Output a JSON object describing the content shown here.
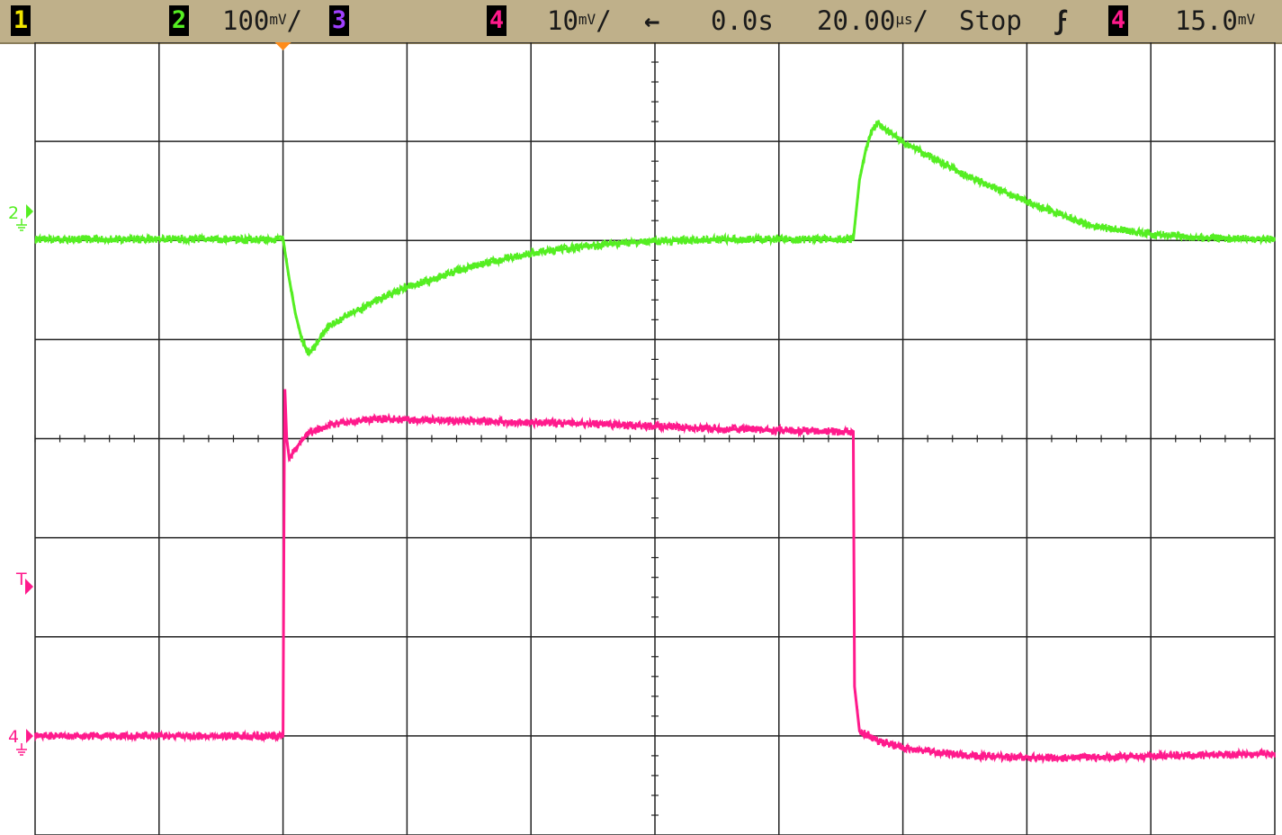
{
  "status_bar": {
    "ch1_label": "1",
    "ch2_label": "2",
    "ch2_scale": "100",
    "ch2_scale_units": "mV",
    "ch2_scale_suffix": "/",
    "ch3_label": "3",
    "ch4_label": "4",
    "ch4_scale": "10",
    "ch4_scale_units": "mV",
    "ch4_scale_suffix": "/",
    "arrow": "←",
    "delay": "0.0s",
    "timebase": "20.00",
    "timebase_units": "µs",
    "timebase_suffix": "/",
    "run_state": "Stop",
    "trigger_slope": "ϝ",
    "trigger_source": "4",
    "trigger_level": "15.0",
    "trigger_level_units": "mV"
  },
  "markers": {
    "ch2_ground_label": "2",
    "ch4_ground_label": "4",
    "trigger_level_label": "T"
  },
  "colors": {
    "ch1": "#f2e600",
    "ch2": "#55ee22",
    "ch3": "#a040ff",
    "ch4": "#ff1a8c",
    "trigger_marker": "#ff8c1a",
    "grid": "#222222",
    "status_bg": "#bfb08a"
  },
  "chart_data": {
    "type": "line",
    "x_divisions": 10,
    "y_divisions": 8,
    "x_unit": "µs",
    "x_per_div": 20,
    "x_range_us": [
      -40,
      160
    ],
    "trigger_time_us": 0,
    "grid": true,
    "series": [
      {
        "name": "2",
        "y_unit": "mV",
        "y_per_div": 100,
        "ground_div": 0,
        "points_us_mV": [
          [
            -40,
            0
          ],
          [
            0,
            0
          ],
          [
            1,
            -40
          ],
          [
            2,
            -75
          ],
          [
            3,
            -100
          ],
          [
            4,
            -115
          ],
          [
            5,
            -110
          ],
          [
            7,
            -90
          ],
          [
            10,
            -78
          ],
          [
            15,
            -62
          ],
          [
            20,
            -48
          ],
          [
            30,
            -28
          ],
          [
            40,
            -14
          ],
          [
            50,
            -6
          ],
          [
            60,
            -2
          ],
          [
            70,
            0
          ],
          [
            92,
            0
          ],
          [
            92.5,
            30
          ],
          [
            93,
            60
          ],
          [
            94,
            90
          ],
          [
            95,
            110
          ],
          [
            96,
            118
          ],
          [
            97,
            112
          ],
          [
            100,
            98
          ],
          [
            105,
            82
          ],
          [
            110,
            65
          ],
          [
            120,
            38
          ],
          [
            130,
            14
          ],
          [
            140,
            5
          ],
          [
            150,
            1
          ],
          [
            160,
            0
          ]
        ]
      },
      {
        "name": "4",
        "y_unit": "mV",
        "y_per_div": 10,
        "ground_div": 0,
        "points_us_mV": [
          [
            -40,
            0
          ],
          [
            0,
            0
          ],
          [
            0.2,
            28
          ],
          [
            0.3,
            35
          ],
          [
            0.6,
            30
          ],
          [
            1,
            28
          ],
          [
            2,
            29
          ],
          [
            4,
            30.5
          ],
          [
            8,
            31.5
          ],
          [
            15,
            32
          ],
          [
            30,
            31.8
          ],
          [
            50,
            31.5
          ],
          [
            70,
            31
          ],
          [
            92,
            30.7
          ],
          [
            92.2,
            5
          ],
          [
            93,
            0.5
          ],
          [
            96,
            -0.5
          ],
          [
            100,
            -1.2
          ],
          [
            110,
            -2
          ],
          [
            125,
            -2.2
          ],
          [
            160,
            -1.8
          ]
        ]
      }
    ]
  }
}
